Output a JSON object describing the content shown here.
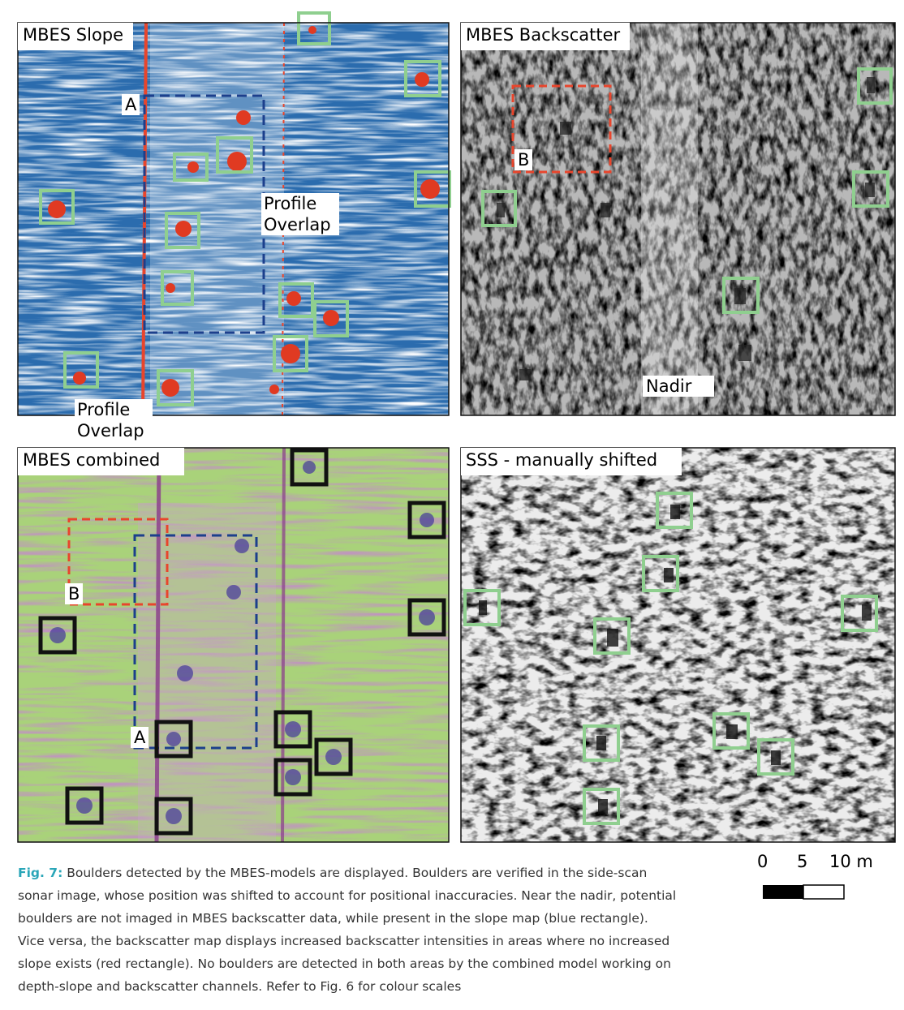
{
  "figure": {
    "panels": [
      {
        "title": "MBES Slope",
        "annotations": [
          "A",
          "Profile Overlap",
          "Profile Overlap"
        ]
      },
      {
        "title": "MBES Backscatter",
        "annotations": [
          "B",
          "Nadir"
        ]
      },
      {
        "title": "MBES combined",
        "annotations": [
          "B",
          "A"
        ]
      },
      {
        "title": "SSS - manually shifted"
      }
    ],
    "scale_bar": {
      "labels": [
        "0",
        "5",
        "10 m"
      ]
    },
    "caption": {
      "label": "Fig. 7:",
      "lines": [
        "Boulders detected by the MBES-models are displayed. Boulders are verified in the side-scan",
        "sonar image, whose position was shifted to account for positional inaccuracies. Near the nadir, potential",
        "boulders are not imaged in MBES backscatter data, while present in the slope map (blue rectangle).",
        "Vice versa, the backscatter map displays increased backscatter intensities in areas where no increased",
        "slope exists (red rectangle). No boulders are detected in both areas by the combined model working on",
        "depth-slope and backscatter channels. Refer to Fig. 6 for colour scales"
      ]
    }
  }
}
